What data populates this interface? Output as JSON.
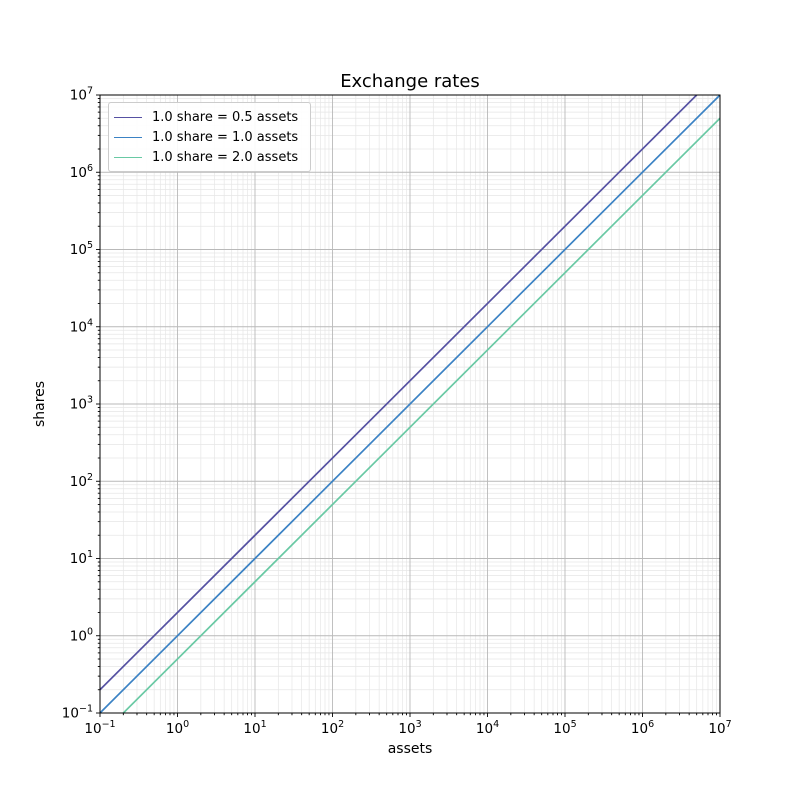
{
  "chart_data": {
    "type": "line",
    "title": "Exchange rates",
    "xlabel": "assets",
    "ylabel": "shares",
    "xscale": "log",
    "yscale": "log",
    "xlim": [
      0.1,
      10000000
    ],
    "ylim": [
      0.1,
      10000000
    ],
    "x_tick_exponents": [
      -1,
      0,
      1,
      2,
      3,
      4,
      5,
      6,
      7
    ],
    "y_tick_exponents": [
      -1,
      0,
      1,
      2,
      3,
      4,
      5,
      6,
      7
    ],
    "grid": {
      "visible": true,
      "which": "both",
      "major_color": "#b9b9b9",
      "minor_color": "#e6e6e6",
      "minor_subs": [
        2,
        3,
        4,
        5,
        6,
        7,
        8,
        9
      ]
    },
    "legend": {
      "location": "upper left",
      "border_color": "#cccccc",
      "background": "#ffffff"
    },
    "series": [
      {
        "name": "1.0 share = 0.5 assets",
        "assets_per_share": 0.5,
        "color": "#5551a2",
        "points": [
          [
            0.1,
            0.2
          ],
          [
            10000000,
            20000000
          ]
        ]
      },
      {
        "name": "1.0 share = 1.0 assets",
        "assets_per_share": 1.0,
        "color": "#3b82c4",
        "points": [
          [
            0.1,
            0.1
          ],
          [
            10000000,
            10000000
          ]
        ]
      },
      {
        "name": "1.0 share = 2.0 assets",
        "assets_per_share": 2.0,
        "color": "#69c9a4",
        "points": [
          [
            0.1,
            0.05
          ],
          [
            10000000,
            5000000
          ]
        ]
      }
    ]
  }
}
